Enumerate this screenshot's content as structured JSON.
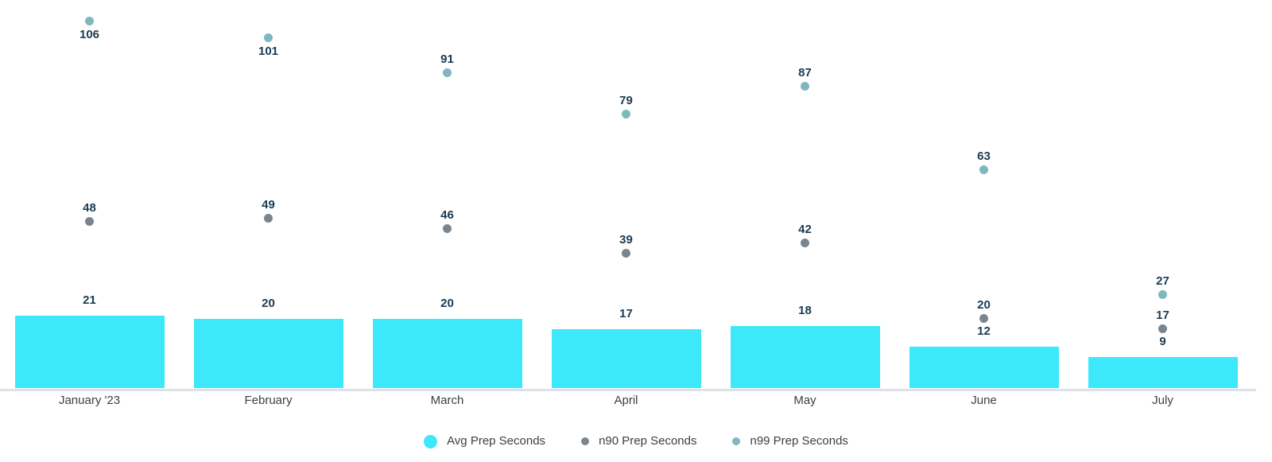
{
  "chart_data": {
    "type": "bar",
    "title": "",
    "xlabel": "",
    "ylabel": "",
    "categories": [
      "January '23",
      "February",
      "March",
      "April",
      "May",
      "June",
      "July"
    ],
    "series": [
      {
        "name": "Avg Prep Seconds",
        "mark": "bar",
        "color": "#3DE8FB",
        "values": [
          21,
          20,
          20,
          17,
          18,
          12,
          9
        ]
      },
      {
        "name": "n90 Prep Seconds",
        "mark": "point",
        "color": "#7A868F",
        "values": [
          48,
          49,
          46,
          39,
          42,
          20,
          17
        ]
      },
      {
        "name": "n99 Prep Seconds",
        "mark": "point",
        "color": "#7FB7C1",
        "values": [
          106,
          101,
          91,
          79,
          87,
          63,
          27
        ],
        "label_below": [
          true,
          true,
          false,
          false,
          false,
          false,
          false
        ]
      }
    ],
    "ylim": [
      0,
      112
    ],
    "grid": false,
    "legend_position": "bottom",
    "data_labels": true
  },
  "style": {
    "value_label_color": "#1B3B52",
    "axis_text_color": "#3C4043",
    "axis_line_color": "#DDE1EA",
    "background_color": "#FFFFFF"
  }
}
